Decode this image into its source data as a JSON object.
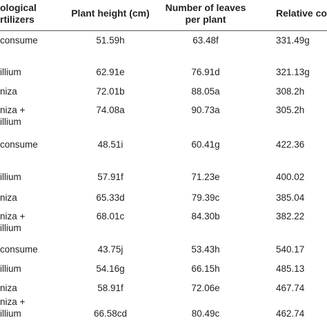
{
  "table": {
    "header": [
      "ological\nrtilizers",
      "Plant height (cm)",
      "Number of leaves\nper plant",
      "Relative co"
    ],
    "rows": [
      [
        "consume",
        "51.59h",
        "63.48f",
        "331.49g"
      ],
      [
        "illium",
        "62.91e",
        "76.91d",
        "321.13g"
      ],
      [
        "niza",
        "72.01b",
        "88.05a",
        "308.2h"
      ],
      [
        "niza +\nillium",
        "74.08a",
        "90.73a",
        "305.2h"
      ],
      [
        "consume",
        "48.51i",
        "60.41g",
        "422.36"
      ],
      [
        "illium",
        "57.91f",
        "71.23e",
        "400.02"
      ],
      [
        "niza",
        "65.33d",
        "79.39c",
        "385.04"
      ],
      [
        "niza +\nillium",
        "68.01c",
        "84.30b",
        "382.22"
      ],
      [
        "consume",
        "43.75j",
        "53.43h",
        "540.17"
      ],
      [
        "illium",
        "54.16g",
        "66.15h",
        "485.13"
      ],
      [
        "niza",
        "58.91f",
        "72.06e",
        "467.74"
      ],
      [
        "niza +\nillium",
        "66.58cd",
        "80.49c",
        "462.74"
      ]
    ]
  }
}
